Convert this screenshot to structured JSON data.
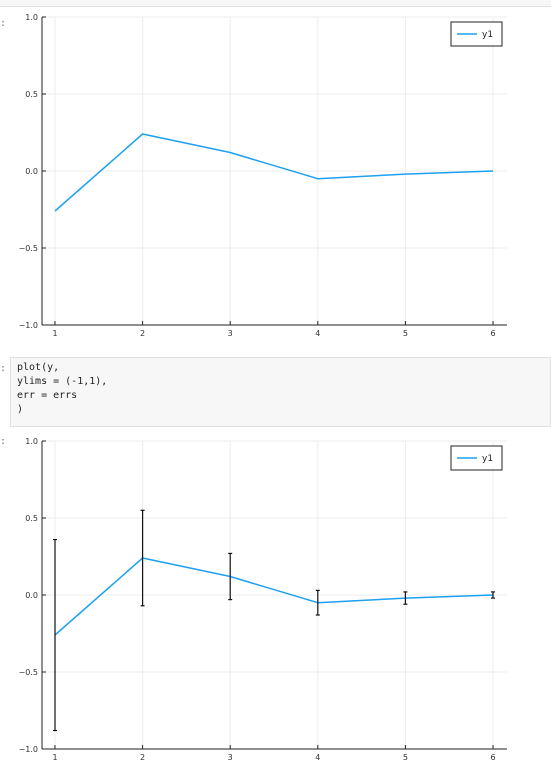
{
  "notebook": {
    "prompt_marker": ":",
    "code_cell": {
      "lines": [
        "plot(y,",
        "ylims = (-1,1),",
        "err = errs",
        ")"
      ]
    }
  },
  "chart_data": [
    {
      "type": "line",
      "title": "",
      "xlabel": "",
      "ylabel": "",
      "x": [
        1,
        2,
        3,
        4,
        5,
        6
      ],
      "xticks": [
        "1",
        "2",
        "3",
        "4",
        "5",
        "6"
      ],
      "yticks": [
        "1.0",
        "0.5",
        "0.0",
        "−0.5",
        "−1.0"
      ],
      "ytick_values": [
        1.0,
        0.5,
        0.0,
        -0.5,
        -1.0
      ],
      "ylim": [
        -1,
        1
      ],
      "grid": true,
      "legend_position": "top-right",
      "series": [
        {
          "name": "y1",
          "color": "#1ca1f2",
          "values": [
            -0.26,
            0.24,
            0.12,
            -0.05,
            -0.02,
            0.0
          ]
        }
      ]
    },
    {
      "type": "line",
      "title": "",
      "xlabel": "",
      "ylabel": "",
      "x": [
        1,
        2,
        3,
        4,
        5,
        6
      ],
      "xticks": [
        "1",
        "2",
        "3",
        "4",
        "5",
        "6"
      ],
      "yticks": [
        "1.0",
        "0.5",
        "0.0",
        "−0.5",
        "−1.0"
      ],
      "ytick_values": [
        1.0,
        0.5,
        0.0,
        -0.5,
        -1.0
      ],
      "ylim": [
        -1,
        1
      ],
      "grid": true,
      "legend_position": "top-right",
      "series": [
        {
          "name": "y1",
          "color": "#1ca1f2",
          "values": [
            -0.26,
            0.24,
            0.12,
            -0.05,
            -0.02,
            0.0
          ],
          "errors": [
            0.62,
            0.31,
            0.15,
            0.08,
            0.04,
            0.02
          ]
        }
      ]
    }
  ]
}
